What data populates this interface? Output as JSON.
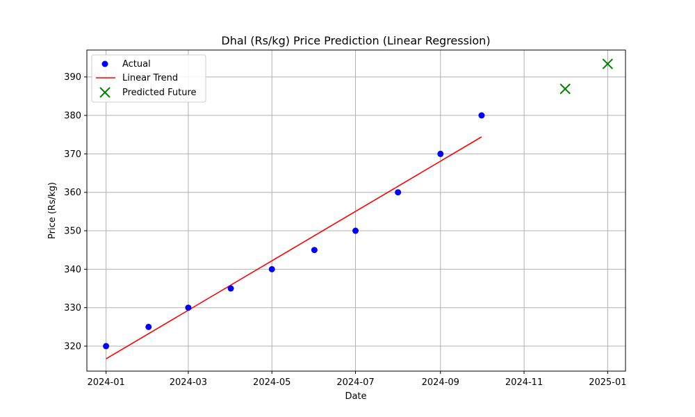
{
  "chart_data": {
    "type": "scatter",
    "title": "Dhal (Rs/kg) Price Prediction (Linear Regression)",
    "xlabel": "Date",
    "ylabel": "Price (Rs/kg)",
    "x_axis_type": "date",
    "xlim": [
      "2023-12-18",
      "2025-01-14"
    ],
    "ylim": [
      313.5,
      397.0
    ],
    "x_ticks": [
      "2024-01",
      "2024-03",
      "2024-05",
      "2024-07",
      "2024-09",
      "2024-11",
      "2025-01"
    ],
    "y_ticks": [
      320,
      330,
      340,
      350,
      360,
      370,
      380,
      390
    ],
    "grid": true,
    "legend_position": "top-left",
    "series": [
      {
        "name": "Actual",
        "kind": "scatter",
        "marker": "circle",
        "color": "#0000ff",
        "points": [
          {
            "x": "2024-01-01",
            "y": 320
          },
          {
            "x": "2024-02-01",
            "y": 325
          },
          {
            "x": "2024-03-01",
            "y": 330
          },
          {
            "x": "2024-04-01",
            "y": 335
          },
          {
            "x": "2024-05-01",
            "y": 340
          },
          {
            "x": "2024-06-01",
            "y": 345
          },
          {
            "x": "2024-07-01",
            "y": 350
          },
          {
            "x": "2024-08-01",
            "y": 360
          },
          {
            "x": "2024-09-01",
            "y": 370
          },
          {
            "x": "2024-10-01",
            "y": 380
          }
        ]
      },
      {
        "name": "Linear Trend",
        "kind": "line",
        "color": "#ff0000",
        "points": [
          {
            "x": "2024-01-01",
            "y": 316.7
          },
          {
            "x": "2024-10-01",
            "y": 374.4
          }
        ]
      },
      {
        "name": "Predicted Future",
        "kind": "scatter",
        "marker": "x",
        "color": "#008000",
        "points": [
          {
            "x": "2024-12-01",
            "y": 386.9
          },
          {
            "x": "2025-01-01",
            "y": 393.4
          }
        ]
      }
    ]
  }
}
